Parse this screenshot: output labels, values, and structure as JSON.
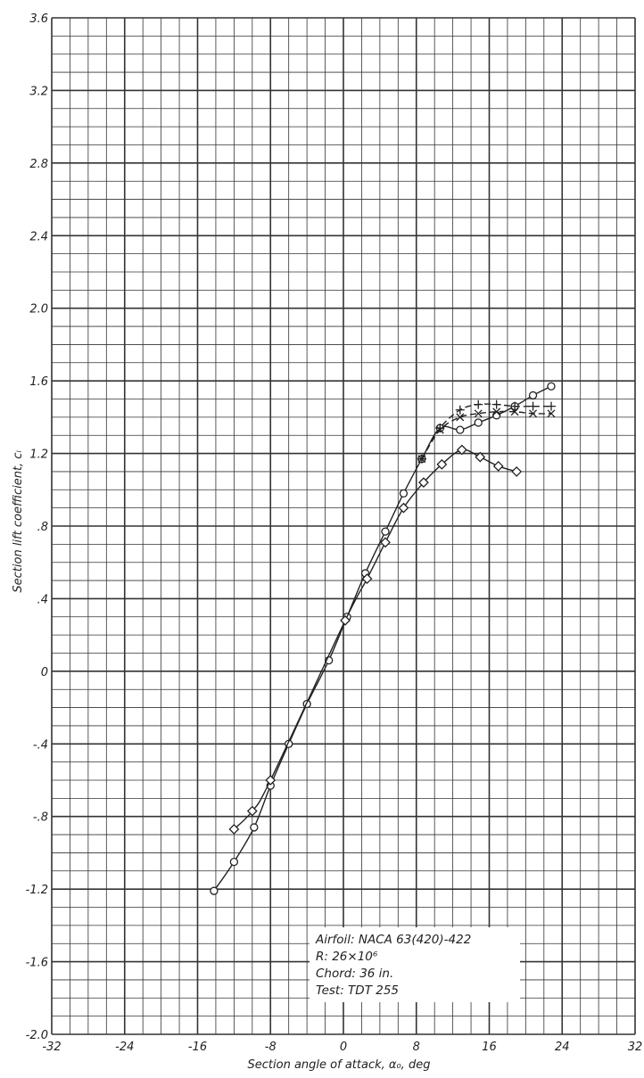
{
  "chart_data": {
    "type": "line",
    "xlabel": "Section angle of attack, α₀, deg",
    "ylabel": "Section lift coefficient, cₗ",
    "xlim": [
      -32,
      32
    ],
    "ylim": [
      -2.0,
      3.6
    ],
    "x_ticks": [
      -32,
      -24,
      -16,
      -8,
      0,
      8,
      16,
      24,
      32
    ],
    "y_ticks": [
      -2.0,
      -1.6,
      -1.2,
      -0.8,
      -0.4,
      0,
      0.4,
      0.8,
      1.2,
      1.6,
      2.0,
      2.4,
      2.8,
      3.2,
      3.6
    ],
    "x_tick_labels": [
      "-32",
      "-24",
      "-16",
      "-8",
      "0",
      "8",
      "16",
      "24",
      "32"
    ],
    "y_tick_labels": [
      "-2.0",
      "-1.6",
      "-1.2",
      "-.8",
      "-.4",
      "0",
      ".4",
      ".8",
      "1.2",
      "1.6",
      "2.0",
      "2.4",
      "2.8",
      "3.2",
      "3.6"
    ],
    "grid": true,
    "series": [
      {
        "marker": "circle",
        "x": [
          -14.2,
          -12,
          -9.8,
          -8,
          -6,
          -4,
          -1.6,
          0.4,
          2.4,
          4.6,
          6.6,
          8.6,
          10.6,
          12.8,
          14.8,
          16.8,
          18.8,
          20.8,
          22.8
        ],
        "y": [
          -1.21,
          -1.05,
          -0.86,
          -0.63,
          -0.4,
          -0.18,
          0.06,
          0.3,
          0.54,
          0.77,
          0.98,
          1.17,
          1.34,
          1.33,
          1.37,
          1.41,
          1.46,
          1.52,
          1.57
        ]
      },
      {
        "marker": "plus",
        "x": [
          8.6,
          10.6,
          12.8,
          14.8,
          16.8,
          18.8,
          20.8,
          22.8
        ],
        "y": [
          1.17,
          1.34,
          1.44,
          1.47,
          1.47,
          1.46,
          1.46,
          1.46
        ]
      },
      {
        "marker": "cross",
        "x": [
          8.6,
          10.6,
          12.8,
          14.8,
          16.8,
          18.8,
          20.8,
          22.8
        ],
        "y": [
          1.17,
          1.33,
          1.4,
          1.42,
          1.43,
          1.43,
          1.42,
          1.42
        ]
      },
      {
        "marker": "diamond",
        "x": [
          -12,
          -10,
          -8,
          0.2,
          2.6,
          4.6,
          6.6,
          8.8,
          10.8,
          13,
          15,
          17,
          19
        ],
        "y": [
          -0.87,
          -0.77,
          -0.6,
          0.28,
          0.51,
          0.71,
          0.9,
          1.04,
          1.14,
          1.22,
          1.18,
          1.13,
          1.1
        ]
      }
    ],
    "annotation": {
      "lines": [
        "Airfoil: NACA 63(420)-422",
        "R: 26×10⁶",
        "Chord: 36 in.",
        "Test: TDT 255"
      ]
    }
  },
  "colors": {
    "line": "#222222",
    "grid": "#333333",
    "background": "#ffffff"
  }
}
